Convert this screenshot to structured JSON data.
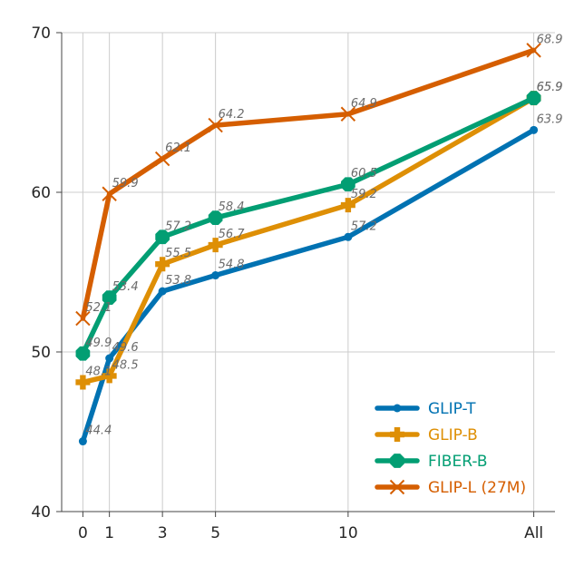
{
  "chart_data": {
    "type": "line",
    "title": "",
    "xlabel": "",
    "ylabel": "",
    "x_categories": [
      "0",
      "1",
      "3",
      "5",
      "10",
      "All"
    ],
    "ylim": [
      40,
      70
    ],
    "y_ticks": [
      40,
      50,
      60,
      70
    ],
    "grid": true,
    "legend_position": "bottom-right",
    "series": [
      {
        "name": "GLIP-T",
        "color": "#0072b2",
        "marker": "circle",
        "values": [
          44.4,
          49.6,
          53.8,
          54.8,
          57.2,
          63.9
        ],
        "labels": [
          "44.4",
          "49.6",
          "53.8",
          "54.8",
          "57.2",
          "63.9"
        ]
      },
      {
        "name": "GLIP-B",
        "color": "#de8f05",
        "marker": "plus",
        "values": [
          48.1,
          48.5,
          55.5,
          56.7,
          59.2,
          65.9
        ],
        "labels": [
          "48.1",
          "48.5",
          "55.5",
          "56.7",
          "59.2",
          "65.9"
        ]
      },
      {
        "name": "FIBER-B",
        "color": "#029e73",
        "marker": "octagon",
        "values": [
          49.9,
          53.4,
          57.2,
          58.4,
          60.5,
          65.9
        ],
        "labels": [
          "49.9",
          "53.4",
          "57.2",
          "58.4",
          "60.5",
          "65.9"
        ]
      },
      {
        "name": "GLIP-L (27M)",
        "color": "#d55e00",
        "marker": "x",
        "values": [
          52.1,
          59.9,
          62.1,
          64.2,
          64.9,
          68.9
        ],
        "labels": [
          "52.1",
          "59.9",
          "62.1",
          "64.2",
          "64.9",
          "68.9"
        ]
      }
    ]
  }
}
